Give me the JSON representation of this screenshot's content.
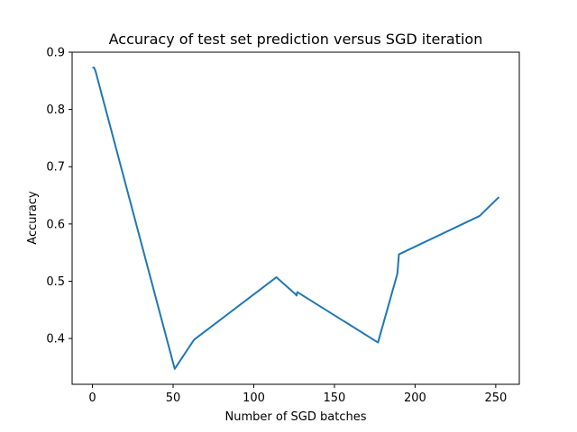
{
  "chart_data": {
    "type": "line",
    "title": "Accuracy of test set prediction versus SGD iteration",
    "xlabel": "Number of SGD batches",
    "ylabel": "Accuracy",
    "xlim": [
      -12.6,
      264.6
    ],
    "ylim": [
      0.32,
      0.9
    ],
    "xticks": [
      0,
      50,
      100,
      150,
      200,
      250
    ],
    "xtick_labels": [
      "0",
      "50",
      "100",
      "150",
      "200",
      "250"
    ],
    "yticks": [
      0.4,
      0.5,
      0.6,
      0.7,
      0.8,
      0.9
    ],
    "ytick_labels": [
      "0.4",
      "0.5",
      "0.6",
      "0.7",
      "0.8",
      "0.9"
    ],
    "grid": false,
    "series": [
      {
        "color": "#1f77b4",
        "x": [
          0,
          1,
          2,
          51,
          63,
          64,
          114,
          126,
          126.5,
          127,
          177,
          189,
          190,
          240,
          252
        ],
        "y": [
          0.873,
          0.873,
          0.866,
          0.347,
          0.398,
          0.4,
          0.507,
          0.477,
          0.475,
          0.481,
          0.393,
          0.513,
          0.547,
          0.614,
          0.647
        ]
      }
    ]
  }
}
